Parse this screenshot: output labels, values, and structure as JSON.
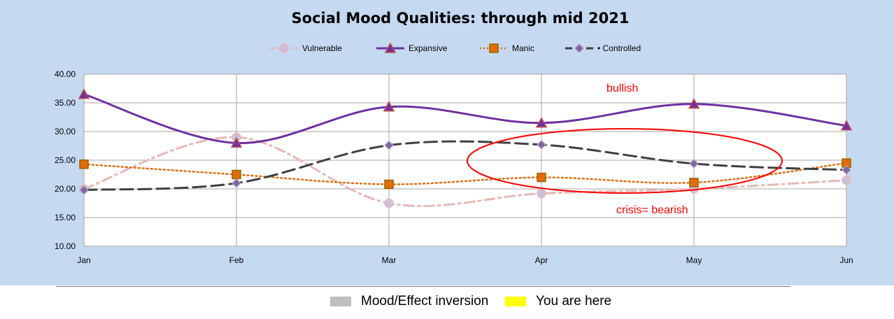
{
  "colors": {
    "background": "#c5d9f1",
    "plot_bg": "#ffffff",
    "vulnerable": "#e6b8b7",
    "expansive": "#7030a0",
    "manic": "#e36c09",
    "controlled": "#404040",
    "annotation": "#ff0000",
    "inversion_swatch": "#bfbfbf",
    "here_swatch": "#ffff00"
  },
  "chart_data": {
    "type": "line",
    "title": "Social Mood Qualities:  through mid 2021",
    "categories": [
      "Jan",
      "Feb",
      "Mar",
      "Apr",
      "May",
      "Jun"
    ],
    "y_ticks": [
      "10.00",
      "15.00",
      "20.00",
      "25.00",
      "30.00",
      "35.00",
      "40.00"
    ],
    "ylim": [
      10,
      40
    ],
    "grid": true,
    "legend_position": "top",
    "smooth": true,
    "series": [
      {
        "name": "Vulnerable",
        "values": [
          20.0,
          29.0,
          17.5,
          19.2,
          20.0,
          21.5
        ],
        "style": "dashdot",
        "marker": "circle"
      },
      {
        "name": "Expansive",
        "values": [
          36.5,
          28.0,
          34.3,
          31.5,
          34.8,
          31.0
        ],
        "style": "solid",
        "marker": "triangle"
      },
      {
        "name": "Manic",
        "values": [
          24.3,
          22.5,
          20.8,
          22.0,
          21.1,
          24.5
        ],
        "style": "dotted",
        "marker": "square"
      },
      {
        "name": "• Controlled",
        "values": [
          19.8,
          21.0,
          27.6,
          27.7,
          24.4,
          23.3
        ],
        "style": "dashed",
        "marker": "diamond"
      }
    ],
    "annotations": [
      {
        "text": "bullish"
      },
      {
        "text": "crisis= bearish"
      }
    ]
  },
  "key": {
    "inversion_label": "Mood/Effect inversion",
    "here_label": "You are here"
  }
}
